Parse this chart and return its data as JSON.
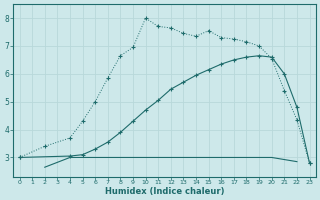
{
  "xlabel": "Humidex (Indice chaleur)",
  "bg_color": "#cde8ea",
  "line_color": "#1e6b6b",
  "grid_color": "#b8d8da",
  "xlim": [
    -0.5,
    23.5
  ],
  "ylim": [
    2.3,
    8.5
  ],
  "yticks": [
    3,
    4,
    5,
    6,
    7,
    8
  ],
  "xticks": [
    0,
    1,
    2,
    3,
    4,
    5,
    6,
    7,
    8,
    9,
    10,
    11,
    12,
    13,
    14,
    15,
    16,
    17,
    18,
    19,
    20,
    21,
    22,
    23
  ],
  "line1_x": [
    2,
    4,
    5,
    6,
    7,
    8,
    9,
    10,
    11,
    12,
    13,
    14,
    15,
    16,
    17,
    18,
    19,
    20,
    22
  ],
  "line1_y": [
    2.65,
    3.0,
    3.0,
    3.0,
    3.0,
    3.0,
    3.0,
    3.0,
    3.0,
    3.0,
    3.0,
    3.0,
    3.0,
    3.0,
    3.0,
    3.0,
    3.0,
    3.0,
    2.85
  ],
  "line2_x": [
    0,
    2,
    4,
    5,
    6,
    7,
    8,
    9,
    10,
    11,
    12,
    13,
    14,
    15,
    16,
    17,
    18,
    19,
    20,
    21,
    22,
    23
  ],
  "line2_y": [
    3.0,
    3.4,
    3.7,
    4.3,
    5.0,
    5.85,
    6.65,
    6.95,
    8.0,
    7.7,
    7.65,
    7.45,
    7.35,
    7.55,
    7.3,
    7.25,
    7.15,
    7.0,
    6.55,
    5.4,
    4.35,
    2.8
  ],
  "line3_x": [
    0,
    4,
    5,
    6,
    7,
    8,
    9,
    10,
    11,
    12,
    13,
    14,
    15,
    16,
    17,
    18,
    19,
    20,
    21,
    22,
    23
  ],
  "line3_y": [
    3.0,
    3.05,
    3.1,
    3.3,
    3.55,
    3.9,
    4.3,
    4.7,
    5.05,
    5.45,
    5.7,
    5.95,
    6.15,
    6.35,
    6.5,
    6.6,
    6.65,
    6.6,
    6.0,
    4.8,
    2.8
  ]
}
